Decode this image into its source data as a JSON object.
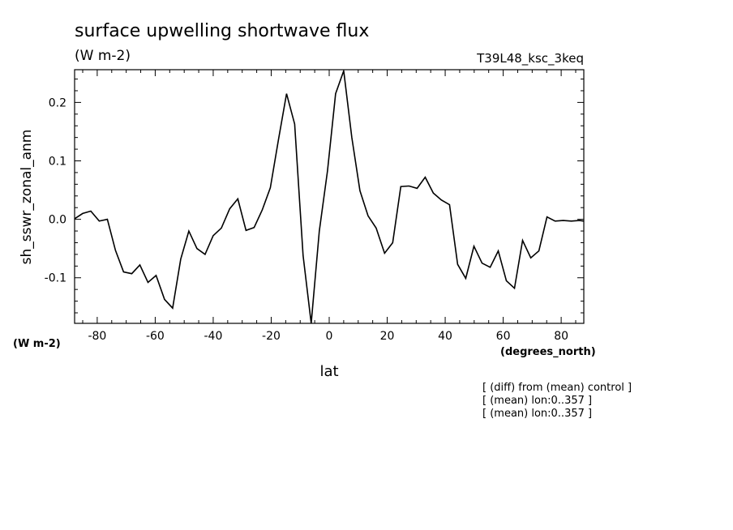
{
  "chart_data": {
    "type": "line",
    "title": "surface upwelling shortwave flux",
    "subtitle": "(W m-2)",
    "run_label": "T39L48_ksc_3keq",
    "xlabel": "lat",
    "ylabel": "sh_sswr_zonal_anm",
    "x_units": "(degrees_north)",
    "y_units": "(W m-2)",
    "xlim": [
      -87.8,
      87.8
    ],
    "ylim": [
      -0.178,
      0.256
    ],
    "x_ticks": [
      -80,
      -60,
      -40,
      -20,
      0,
      20,
      40,
      60,
      80
    ],
    "x_tick_labels": [
      "-80",
      "-60",
      "-40",
      "-20",
      "0",
      "20",
      "40",
      "60",
      "80"
    ],
    "y_ticks": [
      -0.1,
      0.0,
      0.1,
      0.2
    ],
    "y_tick_labels": [
      "-0.1",
      "0.0",
      "0.1",
      "0.2"
    ],
    "grid": false,
    "line_color": "#000000",
    "series": [
      {
        "x": [
          -87.8,
          -85.0,
          -82.2,
          -79.3,
          -76.5,
          -73.7,
          -70.9,
          -68.1,
          -65.3,
          -62.5,
          -59.7,
          -56.8,
          -54.0,
          -51.2,
          -48.4,
          -45.6,
          -42.8,
          -40.0,
          -37.2,
          -34.3,
          -31.5,
          -28.7,
          -25.9,
          -23.1,
          -20.3,
          -17.5,
          -14.7,
          -11.9,
          -9.0,
          -6.2,
          -3.4,
          -0.6,
          2.2,
          5.0,
          7.8,
          10.6,
          13.4,
          16.2,
          19.1,
          21.9,
          24.7,
          27.5,
          30.3,
          33.1,
          35.9,
          38.7,
          41.5,
          44.3,
          47.1,
          49.9,
          52.7,
          55.5,
          58.3,
          61.1,
          63.9,
          66.7,
          69.5,
          72.3,
          75.1,
          77.9,
          80.7,
          83.5,
          86.3,
          87.8
        ],
        "y": [
          0.001,
          0.01,
          0.014,
          -0.003,
          0.0,
          -0.053,
          -0.09,
          -0.093,
          -0.078,
          -0.108,
          -0.096,
          -0.137,
          -0.152,
          -0.068,
          -0.02,
          -0.05,
          -0.06,
          -0.028,
          -0.015,
          0.018,
          0.035,
          -0.019,
          -0.014,
          0.016,
          0.054,
          0.136,
          0.215,
          0.163,
          -0.062,
          -0.178,
          -0.02,
          0.083,
          0.215,
          0.254,
          0.14,
          0.049,
          0.006,
          -0.015,
          -0.058,
          -0.04,
          0.056,
          0.057,
          0.053,
          0.072,
          0.045,
          0.033,
          0.025,
          -0.077,
          -0.101,
          -0.046,
          -0.075,
          -0.082,
          -0.054,
          -0.105,
          -0.118,
          -0.036,
          -0.066,
          -0.054,
          0.004,
          -0.003,
          -0.002,
          -0.003,
          -0.002,
          -0.003
        ]
      }
    ]
  },
  "notes": [
    "[ (diff) from (mean) control ]",
    "[ (mean) lon:0..357 ]",
    "[ (mean) lon:0..357 ]"
  ]
}
